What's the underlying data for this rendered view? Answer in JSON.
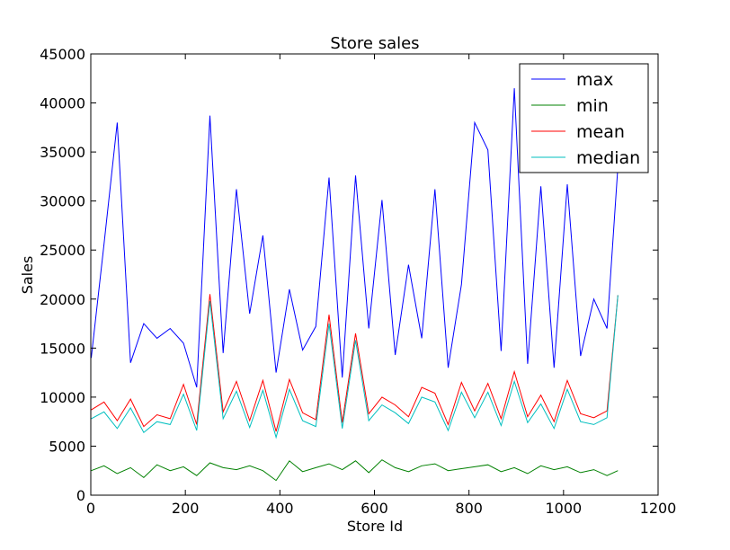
{
  "chart_data": {
    "type": "line",
    "title": "Store sales",
    "xlabel": "Store Id",
    "ylabel": "Sales",
    "xlim": [
      0,
      1200
    ],
    "ylim": [
      0,
      45000
    ],
    "xticks": [
      0,
      200,
      400,
      600,
      800,
      1000,
      1200
    ],
    "yticks": [
      0,
      5000,
      10000,
      15000,
      20000,
      25000,
      30000,
      35000,
      40000,
      45000
    ],
    "grid": false,
    "legend_position": "top-right",
    "x": [
      1,
      28,
      56,
      84,
      112,
      140,
      168,
      196,
      224,
      252,
      280,
      308,
      336,
      364,
      392,
      420,
      448,
      476,
      504,
      532,
      560,
      588,
      616,
      644,
      672,
      700,
      728,
      756,
      784,
      812,
      840,
      868,
      896,
      924,
      952,
      980,
      1008,
      1036,
      1064,
      1092,
      1115
    ],
    "series": [
      {
        "name": "max",
        "color": "#0000ff",
        "values": [
          14000,
          25600,
          38000,
          13500,
          17500,
          16000,
          17000,
          15500,
          11000,
          38700,
          14500,
          31200,
          18500,
          26500,
          12500,
          21000,
          14800,
          17200,
          32400,
          12000,
          32600,
          17000,
          30100,
          14300,
          23500,
          16000,
          31200,
          13000,
          21500,
          38000,
          35200,
          14700,
          41500,
          13400,
          31500,
          13000,
          31700,
          14200,
          20000,
          17000,
          33500
        ]
      },
      {
        "name": "min",
        "color": "#008000",
        "values": [
          2500,
          3000,
          2200,
          2800,
          1800,
          3100,
          2500,
          2900,
          2000,
          3300,
          2800,
          2600,
          3000,
          2500,
          1500,
          3500,
          2400,
          2800,
          3200,
          2600,
          3500,
          2300,
          3600,
          2800,
          2400,
          3000,
          3200,
          2500,
          2700,
          2900,
          3100,
          2400,
          2800,
          2200,
          3000,
          2600,
          2900,
          2300,
          2600,
          2000,
          2500
        ]
      },
      {
        "name": "mean",
        "color": "#ff0000",
        "values": [
          8700,
          9500,
          7600,
          9800,
          7000,
          8200,
          7800,
          11300,
          7200,
          20500,
          8500,
          11600,
          7600,
          11700,
          6500,
          11800,
          8400,
          7700,
          18400,
          7400,
          16500,
          8300,
          10000,
          9200,
          8000,
          11000,
          10400,
          7200,
          11500,
          8600,
          11400,
          7800,
          12600,
          8000,
          10200,
          7500,
          11700,
          8300,
          7900,
          8600,
          20400
        ]
      },
      {
        "name": "median",
        "color": "#00bfbf",
        "values": [
          7800,
          8500,
          6800,
          8900,
          6400,
          7500,
          7200,
          10300,
          6600,
          19800,
          7800,
          10600,
          6900,
          10700,
          5900,
          10800,
          7600,
          7000,
          17500,
          6800,
          15800,
          7600,
          9200,
          8400,
          7300,
          10000,
          9500,
          6600,
          10500,
          7900,
          10500,
          7100,
          11600,
          7400,
          9300,
          6800,
          10800,
          7500,
          7200,
          7900,
          20400
        ]
      }
    ]
  }
}
